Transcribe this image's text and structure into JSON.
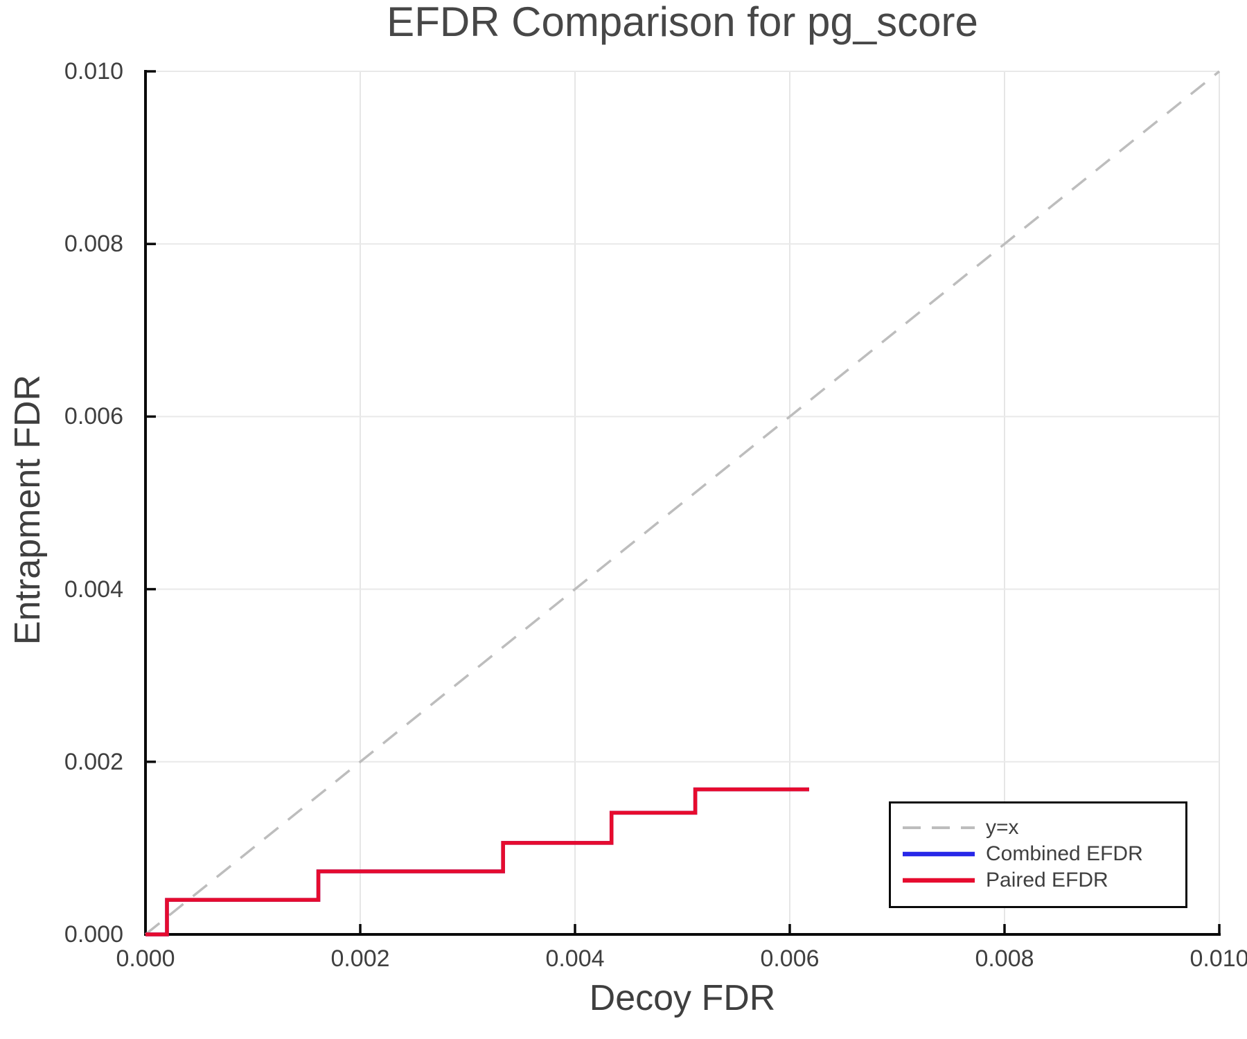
{
  "chart_data": {
    "type": "line",
    "title": "EFDR Comparison for pg_score",
    "xlabel": "Decoy FDR",
    "ylabel": "Entrapment FDR",
    "xlim": [
      0.0,
      0.01
    ],
    "ylim": [
      0.0,
      0.01
    ],
    "grid": true,
    "legend_position": "lower right",
    "x_ticks": [
      {
        "value": 0.0,
        "label": "0.000"
      },
      {
        "value": 0.002,
        "label": "0.002"
      },
      {
        "value": 0.004,
        "label": "0.004"
      },
      {
        "value": 0.006,
        "label": "0.006"
      },
      {
        "value": 0.008,
        "label": "0.008"
      },
      {
        "value": 0.01,
        "label": "0.010"
      }
    ],
    "y_ticks": [
      {
        "value": 0.0,
        "label": "0.000"
      },
      {
        "value": 0.002,
        "label": "0.002"
      },
      {
        "value": 0.004,
        "label": "0.004"
      },
      {
        "value": 0.006,
        "label": "0.006"
      },
      {
        "value": 0.008,
        "label": "0.008"
      },
      {
        "value": 0.01,
        "label": "0.010"
      }
    ],
    "series": [
      {
        "name": "y=x",
        "style": "dashed",
        "color": "#bdbdbd",
        "points": [
          [
            0.0,
            0.0
          ],
          [
            0.01,
            0.01
          ]
        ]
      },
      {
        "name": "Combined EFDR",
        "style": "solid",
        "color": "#2727e8",
        "note": "coincides exactly with Paired EFDR curve and is hidden beneath it",
        "points": [
          [
            0.0,
            0.0
          ],
          [
            0.0002,
            0.0
          ],
          [
            0.0002,
            0.0004
          ],
          [
            0.00161,
            0.0004
          ],
          [
            0.00161,
            0.00073
          ],
          [
            0.00333,
            0.00073
          ],
          [
            0.00333,
            0.00106
          ],
          [
            0.00434,
            0.00106
          ],
          [
            0.00434,
            0.00141
          ],
          [
            0.00512,
            0.00141
          ],
          [
            0.00512,
            0.00168
          ],
          [
            0.00618,
            0.00168
          ]
        ]
      },
      {
        "name": "Paired EFDR",
        "style": "solid",
        "color": "#e60b2e",
        "points": [
          [
            0.0,
            0.0
          ],
          [
            0.0002,
            0.0
          ],
          [
            0.0002,
            0.0004
          ],
          [
            0.00161,
            0.0004
          ],
          [
            0.00161,
            0.00073
          ],
          [
            0.00333,
            0.00073
          ],
          [
            0.00333,
            0.00106
          ],
          [
            0.00434,
            0.00106
          ],
          [
            0.00434,
            0.00141
          ],
          [
            0.00512,
            0.00141
          ],
          [
            0.00512,
            0.00168
          ],
          [
            0.00618,
            0.00168
          ]
        ]
      }
    ]
  }
}
